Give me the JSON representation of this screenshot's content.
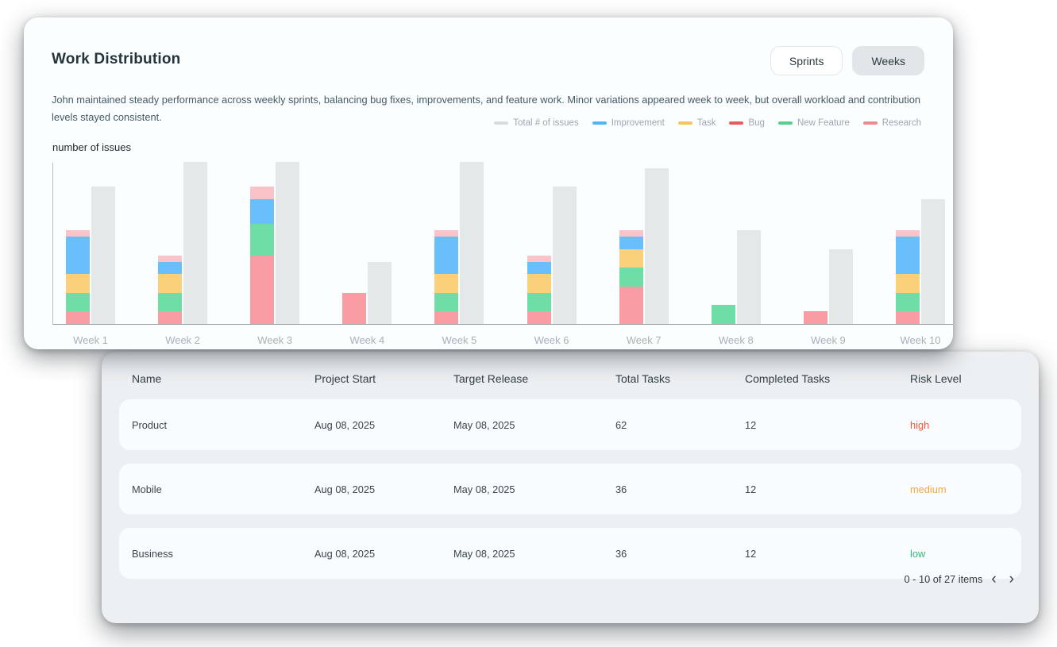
{
  "header": {
    "title": "Work Distribution",
    "toggle": {
      "sprints_label": "Sprints",
      "weeks_label": "Weeks",
      "selected": "Weeks"
    }
  },
  "description": "John maintained steady performance across weekly sprints, balancing bug fixes, improvements, and feature work. Minor variations appeared week to week, but overall workload and contribution levels stayed consistent.",
  "chart_data": {
    "type": "bar",
    "stacked": true,
    "ylabel": "number of issues",
    "ylim": [
      0,
      26
    ],
    "grid": false,
    "axis_tick_labels_hidden": true,
    "legend_position": "top-right",
    "categories": [
      "Week 1",
      "Week 2",
      "Week 3",
      "Week 4",
      "Week 5",
      "Week 6",
      "Week 7",
      "Week 8",
      "Week 9",
      "Week 10"
    ],
    "series": [
      {
        "name": "Total # of issues",
        "role": "total",
        "bar_color": "#e5e8e9",
        "legend_color": "#d9dcdd",
        "values": [
          22,
          26,
          26,
          10,
          26,
          22,
          25,
          15,
          12,
          20
        ]
      },
      {
        "name": "Improvement",
        "bar_color": "#69befc",
        "legend_color": "#53b5f7",
        "values": [
          6,
          2,
          4,
          0,
          6,
          2,
          2,
          0,
          0,
          6
        ]
      },
      {
        "name": "Task",
        "bar_color": "#fbd07a",
        "legend_color": "#f6c65b",
        "values": [
          3,
          3,
          0,
          0,
          3,
          3,
          3,
          0,
          0,
          3
        ]
      },
      {
        "name": "Bug",
        "bar_color": "#fa9ca3",
        "legend_color": "#ea5a5e",
        "values": [
          2,
          2,
          11,
          5,
          2,
          2,
          6,
          0,
          2,
          2
        ]
      },
      {
        "name": "New Feature",
        "bar_color": "#6edea6",
        "legend_color": "#57cf92",
        "values": [
          3,
          3,
          5,
          0,
          3,
          3,
          3,
          3,
          0,
          3
        ]
      },
      {
        "name": "Research",
        "bar_color": "#f9c3c8",
        "legend_color": "#f0898d",
        "values": [
          1,
          1,
          2,
          0,
          1,
          1,
          1,
          0,
          0,
          1
        ]
      }
    ],
    "stack_order_bottom_to_top": [
      "Bug",
      "New Feature",
      "Task",
      "Improvement",
      "Research"
    ]
  },
  "table": {
    "headers": [
      "Name",
      "Project Start",
      "Target Release",
      "Total Tasks",
      "Completed Tasks",
      "Risk Level"
    ],
    "rows": [
      {
        "name": "Product",
        "project_start": "Aug 08, 2025",
        "target_release": "May 08, 2025",
        "total_tasks": "62",
        "completed_tasks": "12",
        "risk_level": "high",
        "risk_color": "#f25633"
      },
      {
        "name": "Mobile",
        "project_start": "Aug 08, 2025",
        "target_release": "May 08, 2025",
        "total_tasks": "36",
        "completed_tasks": "12",
        "risk_level": "medium",
        "risk_color": "#f5a83b"
      },
      {
        "name": "Business",
        "project_start": "Aug 08, 2025",
        "target_release": "May 08, 2025",
        "total_tasks": "36",
        "completed_tasks": "12",
        "risk_level": "low",
        "risk_color": "#35b877"
      }
    ],
    "pagination": {
      "label": "0 - 10 of 27 items",
      "prev_icon": "‹",
      "next_icon": "›"
    }
  }
}
